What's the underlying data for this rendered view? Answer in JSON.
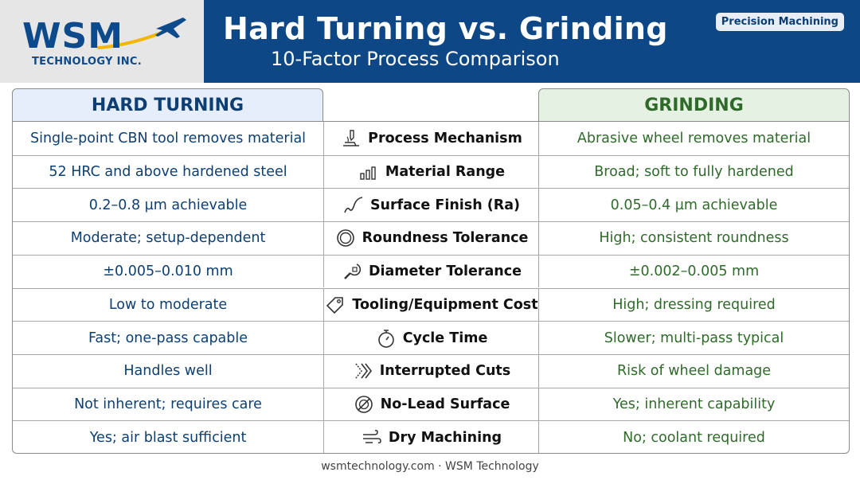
{
  "logo": {
    "main": "WSM",
    "sub": "TECHNOLOGY INC."
  },
  "header": {
    "title": "Hard Turning vs. Grinding",
    "subtitle": "10-Factor Process Comparison",
    "badge": "Precision Machining"
  },
  "table": {
    "left_header": "HARD TURNING",
    "right_header": "GRINDING",
    "rows": [
      {
        "hard_turning": "Single-point CBN tool removes material",
        "factor": "Process Mechanism",
        "icon": "tool-icon",
        "grinding": "Abrasive wheel removes material"
      },
      {
        "hard_turning": "52 HRC and above hardened steel",
        "factor": "Material Range",
        "icon": "bar-chart-icon",
        "grinding": "Broad; soft to fully hardened"
      },
      {
        "hard_turning": "0.2–0.8 µm achievable",
        "factor": "Surface Finish (Ra)",
        "icon": "wave-icon",
        "grinding": "0.05–0.4 µm achievable"
      },
      {
        "hard_turning": "Moderate; setup-dependent",
        "factor": "Roundness Tolerance",
        "icon": "circle-icon",
        "grinding": "High; consistent roundness"
      },
      {
        "hard_turning": "±0.005–0.010 mm",
        "factor": "Diameter Tolerance",
        "icon": "micrometer-icon",
        "grinding": "±0.002–0.005 mm"
      },
      {
        "hard_turning": "Low to moderate",
        "factor": "Tooling/Equipment Cost",
        "icon": "tag-icon",
        "grinding": "High; dressing required"
      },
      {
        "hard_turning": "Fast; one-pass capable",
        "factor": "Cycle Time",
        "icon": "stopwatch-icon",
        "grinding": "Slower; multi-pass typical"
      },
      {
        "hard_turning": "Handles well",
        "factor": "Interrupted Cuts",
        "icon": "chevrons-icon",
        "grinding": "Risk of wheel damage"
      },
      {
        "hard_turning": "Not inherent; requires care",
        "factor": "No-Lead Surface",
        "icon": "no-lead-icon",
        "grinding": "Yes; inherent capability"
      },
      {
        "hard_turning": "Yes; air blast sufficient",
        "factor": "Dry Machining",
        "icon": "wind-icon",
        "grinding": "No; coolant required"
      }
    ]
  },
  "footer": "wsmtechnology.com · WSM Technology"
}
